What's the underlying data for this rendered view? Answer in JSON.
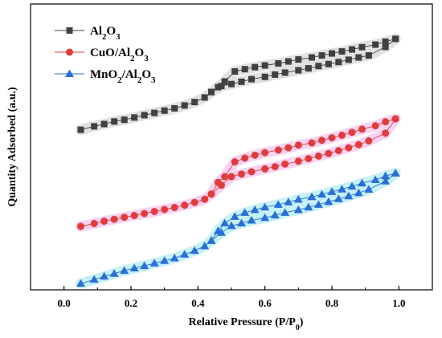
{
  "chart_data": {
    "type": "line",
    "xlabel_main": "Relative Pressure (P/P",
    "xlabel_sub": "0",
    "xlabel_close": ")",
    "ylabel": "Quantity Adsorbed (a.u.)",
    "xlim": [
      -0.1,
      1.1
    ],
    "ylim": [
      0,
      1
    ],
    "x_ticks": [
      0.0,
      0.2,
      0.4,
      0.6,
      0.8,
      1.0
    ],
    "x_tick_labels": [
      "0.0",
      "0.2",
      "0.4",
      "0.6",
      "0.8",
      "1.0"
    ],
    "y_tick_labels_shown": false,
    "grid": false,
    "legend_position": "top-left",
    "series": [
      {
        "name_parts": [
          [
            "Al",
            ""
          ],
          [
            "2",
            "sub"
          ],
          [
            "O",
            ""
          ],
          [
            "3",
            "sub"
          ]
        ],
        "marker": "square",
        "color": "#404040",
        "band_color": "#d9d9d9",
        "adsorption": [
          [
            0.05,
            0.56
          ],
          [
            0.09,
            0.572
          ],
          [
            0.12,
            0.58
          ],
          [
            0.15,
            0.589
          ],
          [
            0.18,
            0.595
          ],
          [
            0.21,
            0.603
          ],
          [
            0.24,
            0.611
          ],
          [
            0.27,
            0.619
          ],
          [
            0.3,
            0.627
          ],
          [
            0.33,
            0.635
          ],
          [
            0.36,
            0.645
          ],
          [
            0.39,
            0.657
          ],
          [
            0.42,
            0.673
          ],
          [
            0.44,
            0.692
          ],
          [
            0.47,
            0.713
          ],
          [
            0.5,
            0.72
          ],
          [
            0.53,
            0.728
          ],
          [
            0.56,
            0.737
          ],
          [
            0.6,
            0.745
          ],
          [
            0.63,
            0.753
          ],
          [
            0.66,
            0.76
          ],
          [
            0.7,
            0.768
          ],
          [
            0.73,
            0.775
          ],
          [
            0.76,
            0.783
          ],
          [
            0.79,
            0.79
          ],
          [
            0.82,
            0.797
          ],
          [
            0.85,
            0.805
          ],
          [
            0.88,
            0.813
          ],
          [
            0.91,
            0.82
          ],
          [
            0.96,
            0.85
          ],
          [
            0.99,
            0.878
          ]
        ],
        "desorption": [
          [
            0.99,
            0.878
          ],
          [
            0.96,
            0.868
          ],
          [
            0.93,
            0.858
          ],
          [
            0.89,
            0.849
          ],
          [
            0.86,
            0.841
          ],
          [
            0.83,
            0.834
          ],
          [
            0.8,
            0.827
          ],
          [
            0.77,
            0.82
          ],
          [
            0.74,
            0.813
          ],
          [
            0.7,
            0.806
          ],
          [
            0.67,
            0.799
          ],
          [
            0.64,
            0.792
          ],
          [
            0.6,
            0.785
          ],
          [
            0.57,
            0.779
          ],
          [
            0.54,
            0.772
          ],
          [
            0.51,
            0.764
          ],
          [
            0.48,
            0.729
          ],
          [
            0.46,
            0.709
          ],
          [
            0.44,
            0.692
          ]
        ]
      },
      {
        "name_parts": [
          [
            "CuO/Al",
            ""
          ],
          [
            "2",
            "sub"
          ],
          [
            "O",
            ""
          ],
          [
            "3",
            "sub"
          ]
        ],
        "marker": "circle",
        "color": "#e03c3c",
        "band_color": "#f7c8f0",
        "adsorption": [
          [
            0.05,
            0.222
          ],
          [
            0.09,
            0.232
          ],
          [
            0.12,
            0.24
          ],
          [
            0.15,
            0.247
          ],
          [
            0.18,
            0.254
          ],
          [
            0.21,
            0.26
          ],
          [
            0.24,
            0.267
          ],
          [
            0.27,
            0.274
          ],
          [
            0.3,
            0.281
          ],
          [
            0.33,
            0.288
          ],
          [
            0.36,
            0.296
          ],
          [
            0.39,
            0.306
          ],
          [
            0.42,
            0.317
          ],
          [
            0.44,
            0.335
          ],
          [
            0.47,
            0.366
          ],
          [
            0.5,
            0.396
          ],
          [
            0.53,
            0.405
          ],
          [
            0.56,
            0.413
          ],
          [
            0.6,
            0.423
          ],
          [
            0.63,
            0.431
          ],
          [
            0.66,
            0.44
          ],
          [
            0.7,
            0.45
          ],
          [
            0.73,
            0.459
          ],
          [
            0.76,
            0.468
          ],
          [
            0.79,
            0.477
          ],
          [
            0.82,
            0.487
          ],
          [
            0.85,
            0.497
          ],
          [
            0.88,
            0.508
          ],
          [
            0.91,
            0.521
          ],
          [
            0.96,
            0.548
          ],
          [
            0.99,
            0.598
          ]
        ],
        "desorption": [
          [
            0.99,
            0.598
          ],
          [
            0.96,
            0.588
          ],
          [
            0.93,
            0.574
          ],
          [
            0.89,
            0.562
          ],
          [
            0.86,
            0.551
          ],
          [
            0.83,
            0.541
          ],
          [
            0.8,
            0.532
          ],
          [
            0.77,
            0.523
          ],
          [
            0.74,
            0.514
          ],
          [
            0.7,
            0.506
          ],
          [
            0.67,
            0.497
          ],
          [
            0.64,
            0.489
          ],
          [
            0.6,
            0.48
          ],
          [
            0.57,
            0.471
          ],
          [
            0.54,
            0.461
          ],
          [
            0.51,
            0.448
          ],
          [
            0.48,
            0.396
          ],
          [
            0.46,
            0.376
          ],
          [
            0.44,
            0.335
          ]
        ]
      },
      {
        "name_parts": [
          [
            "MnO",
            ""
          ],
          [
            "2",
            "sub"
          ],
          [
            "/Al",
            ""
          ],
          [
            "2",
            "sub"
          ],
          [
            "O",
            ""
          ],
          [
            "3",
            "sub"
          ]
        ],
        "marker": "triangle",
        "color": "#2a6fd6",
        "band_color": "#b6eef8",
        "adsorption": [
          [
            0.05,
            0.022
          ],
          [
            0.09,
            0.036
          ],
          [
            0.12,
            0.047
          ],
          [
            0.15,
            0.057
          ],
          [
            0.18,
            0.067
          ],
          [
            0.21,
            0.076
          ],
          [
            0.24,
            0.084
          ],
          [
            0.27,
            0.093
          ],
          [
            0.3,
            0.102
          ],
          [
            0.33,
            0.111
          ],
          [
            0.36,
            0.124
          ],
          [
            0.39,
            0.137
          ],
          [
            0.42,
            0.153
          ],
          [
            0.44,
            0.172
          ],
          [
            0.47,
            0.2
          ],
          [
            0.5,
            0.224
          ],
          [
            0.53,
            0.233
          ],
          [
            0.56,
            0.243
          ],
          [
            0.6,
            0.252
          ],
          [
            0.63,
            0.261
          ],
          [
            0.66,
            0.27
          ],
          [
            0.7,
            0.28
          ],
          [
            0.73,
            0.289
          ],
          [
            0.76,
            0.298
          ],
          [
            0.79,
            0.308
          ],
          [
            0.82,
            0.318
          ],
          [
            0.85,
            0.328
          ],
          [
            0.88,
            0.339
          ],
          [
            0.91,
            0.351
          ],
          [
            0.96,
            0.38
          ],
          [
            0.99,
            0.408
          ]
        ],
        "desorption": [
          [
            0.99,
            0.408
          ],
          [
            0.96,
            0.398
          ],
          [
            0.93,
            0.385
          ],
          [
            0.89,
            0.373
          ],
          [
            0.86,
            0.362
          ],
          [
            0.83,
            0.352
          ],
          [
            0.8,
            0.343
          ],
          [
            0.77,
            0.334
          ],
          [
            0.74,
            0.325
          ],
          [
            0.7,
            0.316
          ],
          [
            0.67,
            0.307
          ],
          [
            0.64,
            0.298
          ],
          [
            0.6,
            0.289
          ],
          [
            0.57,
            0.28
          ],
          [
            0.54,
            0.27
          ],
          [
            0.51,
            0.256
          ],
          [
            0.48,
            0.233
          ],
          [
            0.46,
            0.206
          ],
          [
            0.44,
            0.172
          ]
        ]
      }
    ]
  }
}
